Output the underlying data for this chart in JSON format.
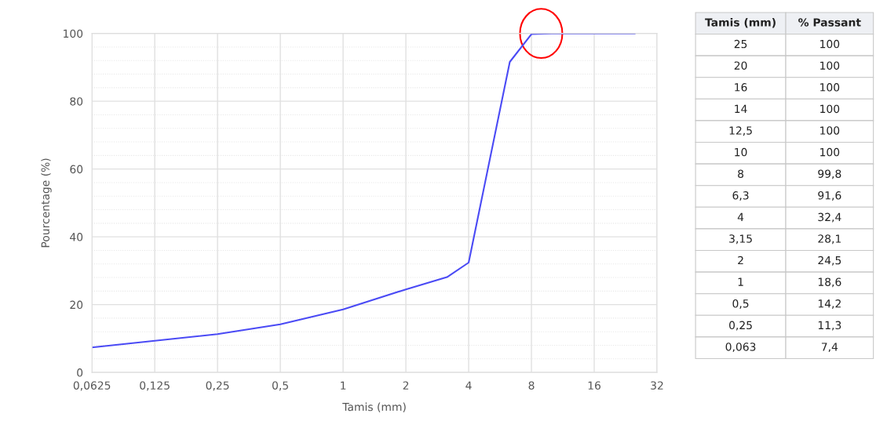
{
  "chart_data": [
    {
      "type": "line",
      "xlabel": "Tamis (mm)",
      "ylabel": "Pourcentage (%)",
      "x": [
        25,
        20,
        16,
        14,
        12.5,
        10,
        8,
        6.3,
        4,
        3.15,
        2,
        1,
        0.5,
        0.25,
        0.063
      ],
      "series": [
        {
          "color": "#4a4af5",
          "values": [
            100,
            100,
            100,
            100,
            100,
            100,
            99.8,
            91.6,
            32.4,
            28.1,
            24.5,
            18.6,
            14.2,
            11.3,
            7.4
          ]
        }
      ],
      "log": "x",
      "xlim": [
        0.0625,
        32
      ],
      "xticks": [
        {
          "value": 0.0625,
          "label": "0,0625"
        },
        {
          "value": 0.125,
          "label": "0,125"
        },
        {
          "value": 0.25,
          "label": "0,25"
        },
        {
          "value": 0.5,
          "label": "0,5"
        },
        1,
        2,
        4,
        8,
        16,
        32
      ],
      "ylim": [
        0,
        100
      ],
      "yticks": [
        0,
        20,
        40,
        60,
        80,
        100
      ],
      "grid": true,
      "marker": "none",
      "line_style": "solid"
    },
    {
      "type": "other",
      "annotations": [
        "Tamis (mm)",
        "% Passant"
      ],
      "categories": [
        "25",
        "20",
        "16",
        "14",
        "12,5",
        "10",
        "8",
        "6,3",
        "4",
        "3,15",
        "2",
        "1",
        "0,5",
        "0,25",
        "0,063"
      ],
      "value_labels": [
        "100",
        "100",
        "100",
        "100",
        "100",
        "100",
        "99,8",
        "91,6",
        "32,4",
        "28,1",
        "24,5",
        "18,6",
        "14,2",
        "11,3",
        "7,4"
      ]
    }
  ]
}
